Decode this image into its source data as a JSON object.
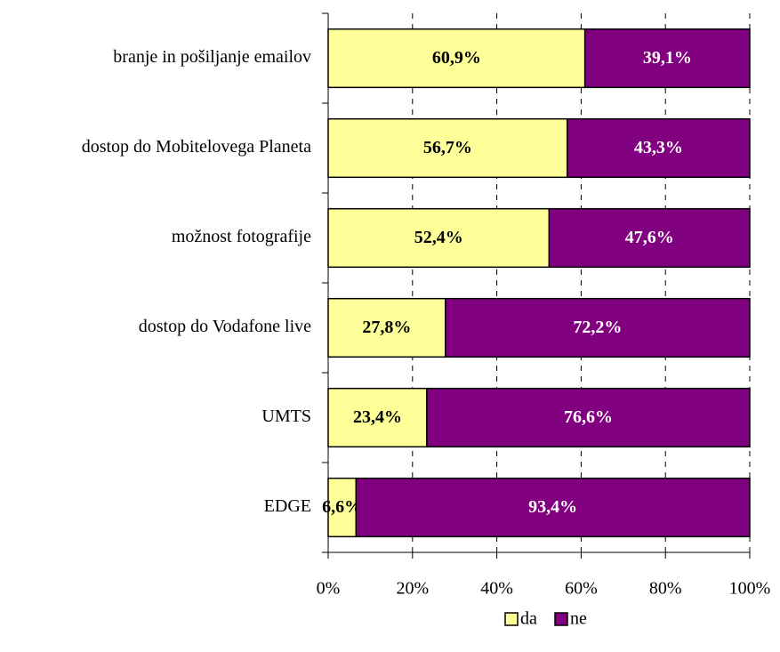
{
  "chart_data": {
    "type": "stacked-barh",
    "categories": [
      "branje in pošiljanje emailov",
      "dostop do Mobitelovega Planeta",
      "možnost fotografije",
      "dostop do Vodafone live",
      "UMTS",
      "EDGE"
    ],
    "series": [
      {
        "name": "da",
        "color": "#ffff99",
        "values": [
          60.9,
          56.7,
          52.4,
          27.8,
          23.4,
          6.6
        ],
        "value_labels": [
          "60,9%",
          "56,7%",
          "52,4%",
          "27,8%",
          "23,4%",
          "6,6%"
        ]
      },
      {
        "name": "ne",
        "color": "#800080",
        "values": [
          39.1,
          43.3,
          47.6,
          72.2,
          76.6,
          93.4
        ],
        "value_labels": [
          "39,1%",
          "43,3%",
          "47,6%",
          "72,2%",
          "76,6%",
          "93,4%"
        ]
      }
    ],
    "xlim": [
      0,
      100
    ],
    "xticks": [
      {
        "value": 0,
        "label": "0%"
      },
      {
        "value": 20,
        "label": "20%"
      },
      {
        "value": 40,
        "label": "40%"
      },
      {
        "value": 60,
        "label": "60%"
      },
      {
        "value": 80,
        "label": "80%"
      },
      {
        "value": 100,
        "label": "100%"
      }
    ],
    "grid": true,
    "legend": "bottom"
  }
}
